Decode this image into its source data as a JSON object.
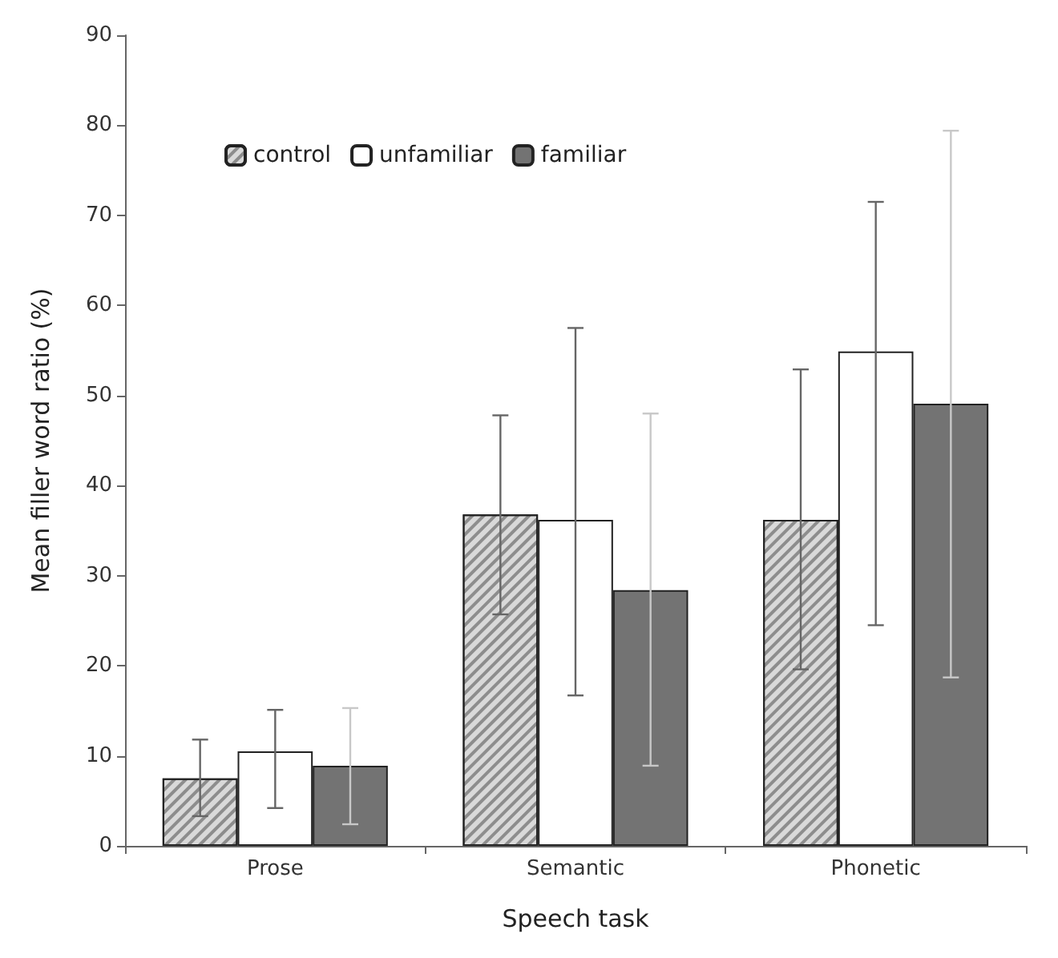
{
  "chart_data": {
    "type": "bar",
    "xlabel": "Speech task",
    "ylabel": "Mean filler word ratio (%)",
    "categories": [
      "Prose",
      "Semantic",
      "Phonetic"
    ],
    "series": [
      {
        "name": "control",
        "color": "#d9d9d9",
        "values": [
          7.5,
          36.8,
          36.2
        ],
        "errors": [
          [
            3.3,
            11.8
          ],
          [
            25.7,
            47.8
          ],
          [
            19.6,
            52.9
          ]
        ]
      },
      {
        "name": "unfamiliar",
        "color": "#ffffff",
        "values": [
          10.5,
          36.2,
          54.9
        ],
        "errors": [
          [
            4.2,
            15.1
          ],
          [
            16.7,
            57.5
          ],
          [
            24.5,
            71.5
          ]
        ]
      },
      {
        "name": "familiar",
        "color": "#737373",
        "values": [
          8.9,
          28.4,
          49.1
        ],
        "errors": [
          [
            2.4,
            15.3
          ],
          [
            8.9,
            48.0
          ],
          [
            18.7,
            79.4
          ]
        ]
      }
    ],
    "ylim": [
      0,
      90
    ],
    "yticks": [
      0,
      10,
      20,
      30,
      40,
      50,
      60,
      70,
      80,
      90
    ],
    "grid": false,
    "legend": "top left"
  }
}
